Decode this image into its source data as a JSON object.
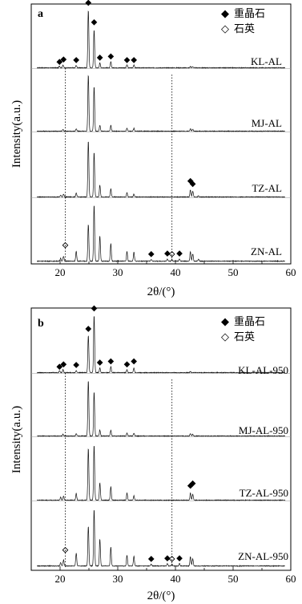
{
  "figure": {
    "panels": [
      {
        "panel_label": "a",
        "ylabel": "Intensity(a.u.)",
        "xlabel": "2θ/(°)",
        "legend": [
          {
            "symbol": "◆",
            "label": "重晶石"
          },
          {
            "symbol": "◇",
            "label": "石英"
          }
        ],
        "trace_labels": [
          "KL-AL",
          "MJ-AL",
          "TZ-AL",
          "ZN-AL"
        ]
      },
      {
        "panel_label": "b",
        "ylabel": "Intensity(a.u.)",
        "xlabel": "2θ/(°)",
        "legend": [
          {
            "symbol": "◆",
            "label": "重晶石"
          },
          {
            "symbol": "◇",
            "label": "石英"
          }
        ],
        "trace_labels": [
          "KL-AL-950",
          "MJ-AL-950",
          "TZ-AL-950",
          "ZN-AL-950"
        ]
      }
    ]
  },
  "chart_data": [
    {
      "type": "line",
      "panel": "a",
      "xlabel": "2θ/(°)",
      "ylabel": "Intensity(a.u.)",
      "xlim": [
        15,
        60
      ],
      "xticks": [
        20,
        30,
        40,
        50,
        60
      ],
      "yticks": [],
      "grid": false,
      "legend_position": "top-right",
      "legend": [
        "重晶石",
        "石英"
      ],
      "reference_lines_x": [
        20.9,
        39.4
      ],
      "series": [
        {
          "name": "KL-AL",
          "peaks": [
            {
              "x": 19.9,
              "h": 0.03
            },
            {
              "x": 20.5,
              "h": 0.05
            },
            {
              "x": 22.8,
              "h": 0.04
            },
            {
              "x": 24.9,
              "h": 0.95
            },
            {
              "x": 25.9,
              "h": 0.62
            },
            {
              "x": 26.9,
              "h": 0.08
            },
            {
              "x": 28.8,
              "h": 0.1
            },
            {
              "x": 31.6,
              "h": 0.05
            },
            {
              "x": 32.8,
              "h": 0.05
            },
            {
              "x": 42.6,
              "h": 0.02
            },
            {
              "x": 43.0,
              "h": 0.02
            }
          ],
          "markers": [
            {
              "x": 19.9,
              "h": 0.05,
              "type": "barite"
            },
            {
              "x": 20.6,
              "h": 0.09,
              "type": "barite"
            },
            {
              "x": 22.8,
              "h": 0.08,
              "type": "barite"
            },
            {
              "x": 24.9,
              "h": 1.02,
              "type": "barite"
            },
            {
              "x": 25.9,
              "h": 0.7,
              "type": "barite"
            },
            {
              "x": 26.9,
              "h": 0.12,
              "type": "barite"
            },
            {
              "x": 28.8,
              "h": 0.14,
              "type": "barite"
            },
            {
              "x": 31.6,
              "h": 0.08,
              "type": "barite"
            },
            {
              "x": 32.8,
              "h": 0.08,
              "type": "barite"
            }
          ]
        },
        {
          "name": "MJ-AL",
          "peaks": [
            {
              "x": 20.5,
              "h": 0.03
            },
            {
              "x": 22.8,
              "h": 0.04
            },
            {
              "x": 24.9,
              "h": 0.95
            },
            {
              "x": 25.9,
              "h": 0.75
            },
            {
              "x": 26.9,
              "h": 0.1
            },
            {
              "x": 28.8,
              "h": 0.1
            },
            {
              "x": 31.6,
              "h": 0.05
            },
            {
              "x": 32.8,
              "h": 0.05
            },
            {
              "x": 42.6,
              "h": 0.04
            },
            {
              "x": 43.0,
              "h": 0.03
            }
          ],
          "markers": []
        },
        {
          "name": "TZ-AL",
          "peaks": [
            {
              "x": 20.1,
              "h": 0.03
            },
            {
              "x": 20.6,
              "h": 0.05
            },
            {
              "x": 22.8,
              "h": 0.07
            },
            {
              "x": 24.9,
              "h": 0.95
            },
            {
              "x": 25.9,
              "h": 0.75
            },
            {
              "x": 26.9,
              "h": 0.2
            },
            {
              "x": 28.8,
              "h": 0.14
            },
            {
              "x": 31.6,
              "h": 0.07
            },
            {
              "x": 32.8,
              "h": 0.05
            },
            {
              "x": 42.6,
              "h": 0.12
            },
            {
              "x": 43.0,
              "h": 0.1
            },
            {
              "x": 44.0,
              "h": 0.02
            }
          ],
          "markers": [
            {
              "x": 42.6,
              "h": 0.22,
              "type": "barite"
            },
            {
              "x": 43.0,
              "h": 0.17,
              "type": "barite"
            }
          ]
        },
        {
          "name": "ZN-AL",
          "peaks": [
            {
              "x": 20.1,
              "h": 0.05
            },
            {
              "x": 20.6,
              "h": 0.08
            },
            {
              "x": 22.8,
              "h": 0.17
            },
            {
              "x": 24.9,
              "h": 0.62
            },
            {
              "x": 25.9,
              "h": 0.95
            },
            {
              "x": 26.9,
              "h": 0.42
            },
            {
              "x": 28.8,
              "h": 0.3
            },
            {
              "x": 31.6,
              "h": 0.16
            },
            {
              "x": 32.8,
              "h": 0.15
            },
            {
              "x": 35.8,
              "h": 0.03
            },
            {
              "x": 38.6,
              "h": 0.04
            },
            {
              "x": 39.4,
              "h": 0.03
            },
            {
              "x": 40.7,
              "h": 0.04
            },
            {
              "x": 42.6,
              "h": 0.16
            },
            {
              "x": 43.0,
              "h": 0.12
            },
            {
              "x": 44.0,
              "h": 0.03
            }
          ],
          "markers": [
            {
              "x": 20.9,
              "h": 0.22,
              "type": "quartz"
            },
            {
              "x": 35.8,
              "h": 0.07,
              "type": "barite"
            },
            {
              "x": 38.6,
              "h": 0.08,
              "type": "barite"
            },
            {
              "x": 39.4,
              "h": 0.07,
              "type": "quartz"
            },
            {
              "x": 40.7,
              "h": 0.08,
              "type": "barite"
            }
          ]
        }
      ]
    },
    {
      "type": "line",
      "panel": "b",
      "xlabel": "2θ/(°)",
      "ylabel": "Intensity(a.u.)",
      "xlim": [
        15,
        60
      ],
      "xticks": [
        20,
        30,
        40,
        50,
        60
      ],
      "yticks": [],
      "grid": false,
      "legend_position": "top-right",
      "legend": [
        "重晶石",
        "石英"
      ],
      "reference_lines_x": [
        20.9,
        39.4
      ],
      "series": [
        {
          "name": "KL-AL-950",
          "peaks": [
            {
              "x": 19.9,
              "h": 0.03
            },
            {
              "x": 20.5,
              "h": 0.05
            },
            {
              "x": 22.8,
              "h": 0.04
            },
            {
              "x": 24.9,
              "h": 0.62
            },
            {
              "x": 25.9,
              "h": 0.95
            },
            {
              "x": 26.9,
              "h": 0.08
            },
            {
              "x": 28.8,
              "h": 0.1
            },
            {
              "x": 31.6,
              "h": 0.05
            },
            {
              "x": 32.8,
              "h": 0.08
            },
            {
              "x": 42.6,
              "h": 0.02
            }
          ],
          "markers": [
            {
              "x": 19.9,
              "h": 0.05,
              "type": "barite"
            },
            {
              "x": 20.6,
              "h": 0.09,
              "type": "barite"
            },
            {
              "x": 22.8,
              "h": 0.08,
              "type": "barite"
            },
            {
              "x": 24.9,
              "h": 0.68,
              "type": "barite"
            },
            {
              "x": 25.9,
              "h": 1.02,
              "type": "barite"
            },
            {
              "x": 26.9,
              "h": 0.12,
              "type": "barite"
            },
            {
              "x": 28.8,
              "h": 0.14,
              "type": "barite"
            },
            {
              "x": 31.6,
              "h": 0.09,
              "type": "barite"
            },
            {
              "x": 32.8,
              "h": 0.14,
              "type": "barite"
            }
          ]
        },
        {
          "name": "MJ-AL-950",
          "peaks": [
            {
              "x": 20.5,
              "h": 0.03
            },
            {
              "x": 22.8,
              "h": 0.04
            },
            {
              "x": 24.9,
              "h": 0.95
            },
            {
              "x": 25.9,
              "h": 0.75
            },
            {
              "x": 26.9,
              "h": 0.1
            },
            {
              "x": 28.8,
              "h": 0.1
            },
            {
              "x": 31.6,
              "h": 0.05
            },
            {
              "x": 32.8,
              "h": 0.05
            },
            {
              "x": 42.6,
              "h": 0.04
            },
            {
              "x": 43.0,
              "h": 0.03
            }
          ],
          "markers": []
        },
        {
          "name": "TZ-AL-950",
          "peaks": [
            {
              "x": 20.1,
              "h": 0.05
            },
            {
              "x": 20.6,
              "h": 0.07
            },
            {
              "x": 22.8,
              "h": 0.12
            },
            {
              "x": 24.9,
              "h": 0.9
            },
            {
              "x": 25.9,
              "h": 0.95
            },
            {
              "x": 26.9,
              "h": 0.3
            },
            {
              "x": 28.8,
              "h": 0.24
            },
            {
              "x": 31.6,
              "h": 0.12
            },
            {
              "x": 32.8,
              "h": 0.08
            },
            {
              "x": 42.6,
              "h": 0.12
            },
            {
              "x": 43.0,
              "h": 0.1
            }
          ],
          "markers": [
            {
              "x": 42.6,
              "h": 0.2,
              "type": "barite"
            },
            {
              "x": 43.0,
              "h": 0.24,
              "type": "barite"
            }
          ]
        },
        {
          "name": "ZN-AL-950",
          "peaks": [
            {
              "x": 20.1,
              "h": 0.06
            },
            {
              "x": 20.6,
              "h": 0.1
            },
            {
              "x": 22.8,
              "h": 0.22
            },
            {
              "x": 24.9,
              "h": 0.67
            },
            {
              "x": 25.9,
              "h": 0.95
            },
            {
              "x": 26.9,
              "h": 0.45
            },
            {
              "x": 28.8,
              "h": 0.32
            },
            {
              "x": 31.6,
              "h": 0.18
            },
            {
              "x": 32.8,
              "h": 0.17
            },
            {
              "x": 35.8,
              "h": 0.03
            },
            {
              "x": 38.6,
              "h": 0.04
            },
            {
              "x": 39.4,
              "h": 0.03
            },
            {
              "x": 40.7,
              "h": 0.04
            },
            {
              "x": 42.6,
              "h": 0.16
            },
            {
              "x": 43.0,
              "h": 0.12
            }
          ],
          "markers": [
            {
              "x": 20.9,
              "h": 0.22,
              "type": "quartz"
            },
            {
              "x": 35.8,
              "h": 0.07,
              "type": "barite"
            },
            {
              "x": 38.6,
              "h": 0.08,
              "type": "barite"
            },
            {
              "x": 39.4,
              "h": 0.07,
              "type": "quartz"
            },
            {
              "x": 40.7,
              "h": 0.08,
              "type": "barite"
            }
          ]
        }
      ]
    }
  ]
}
